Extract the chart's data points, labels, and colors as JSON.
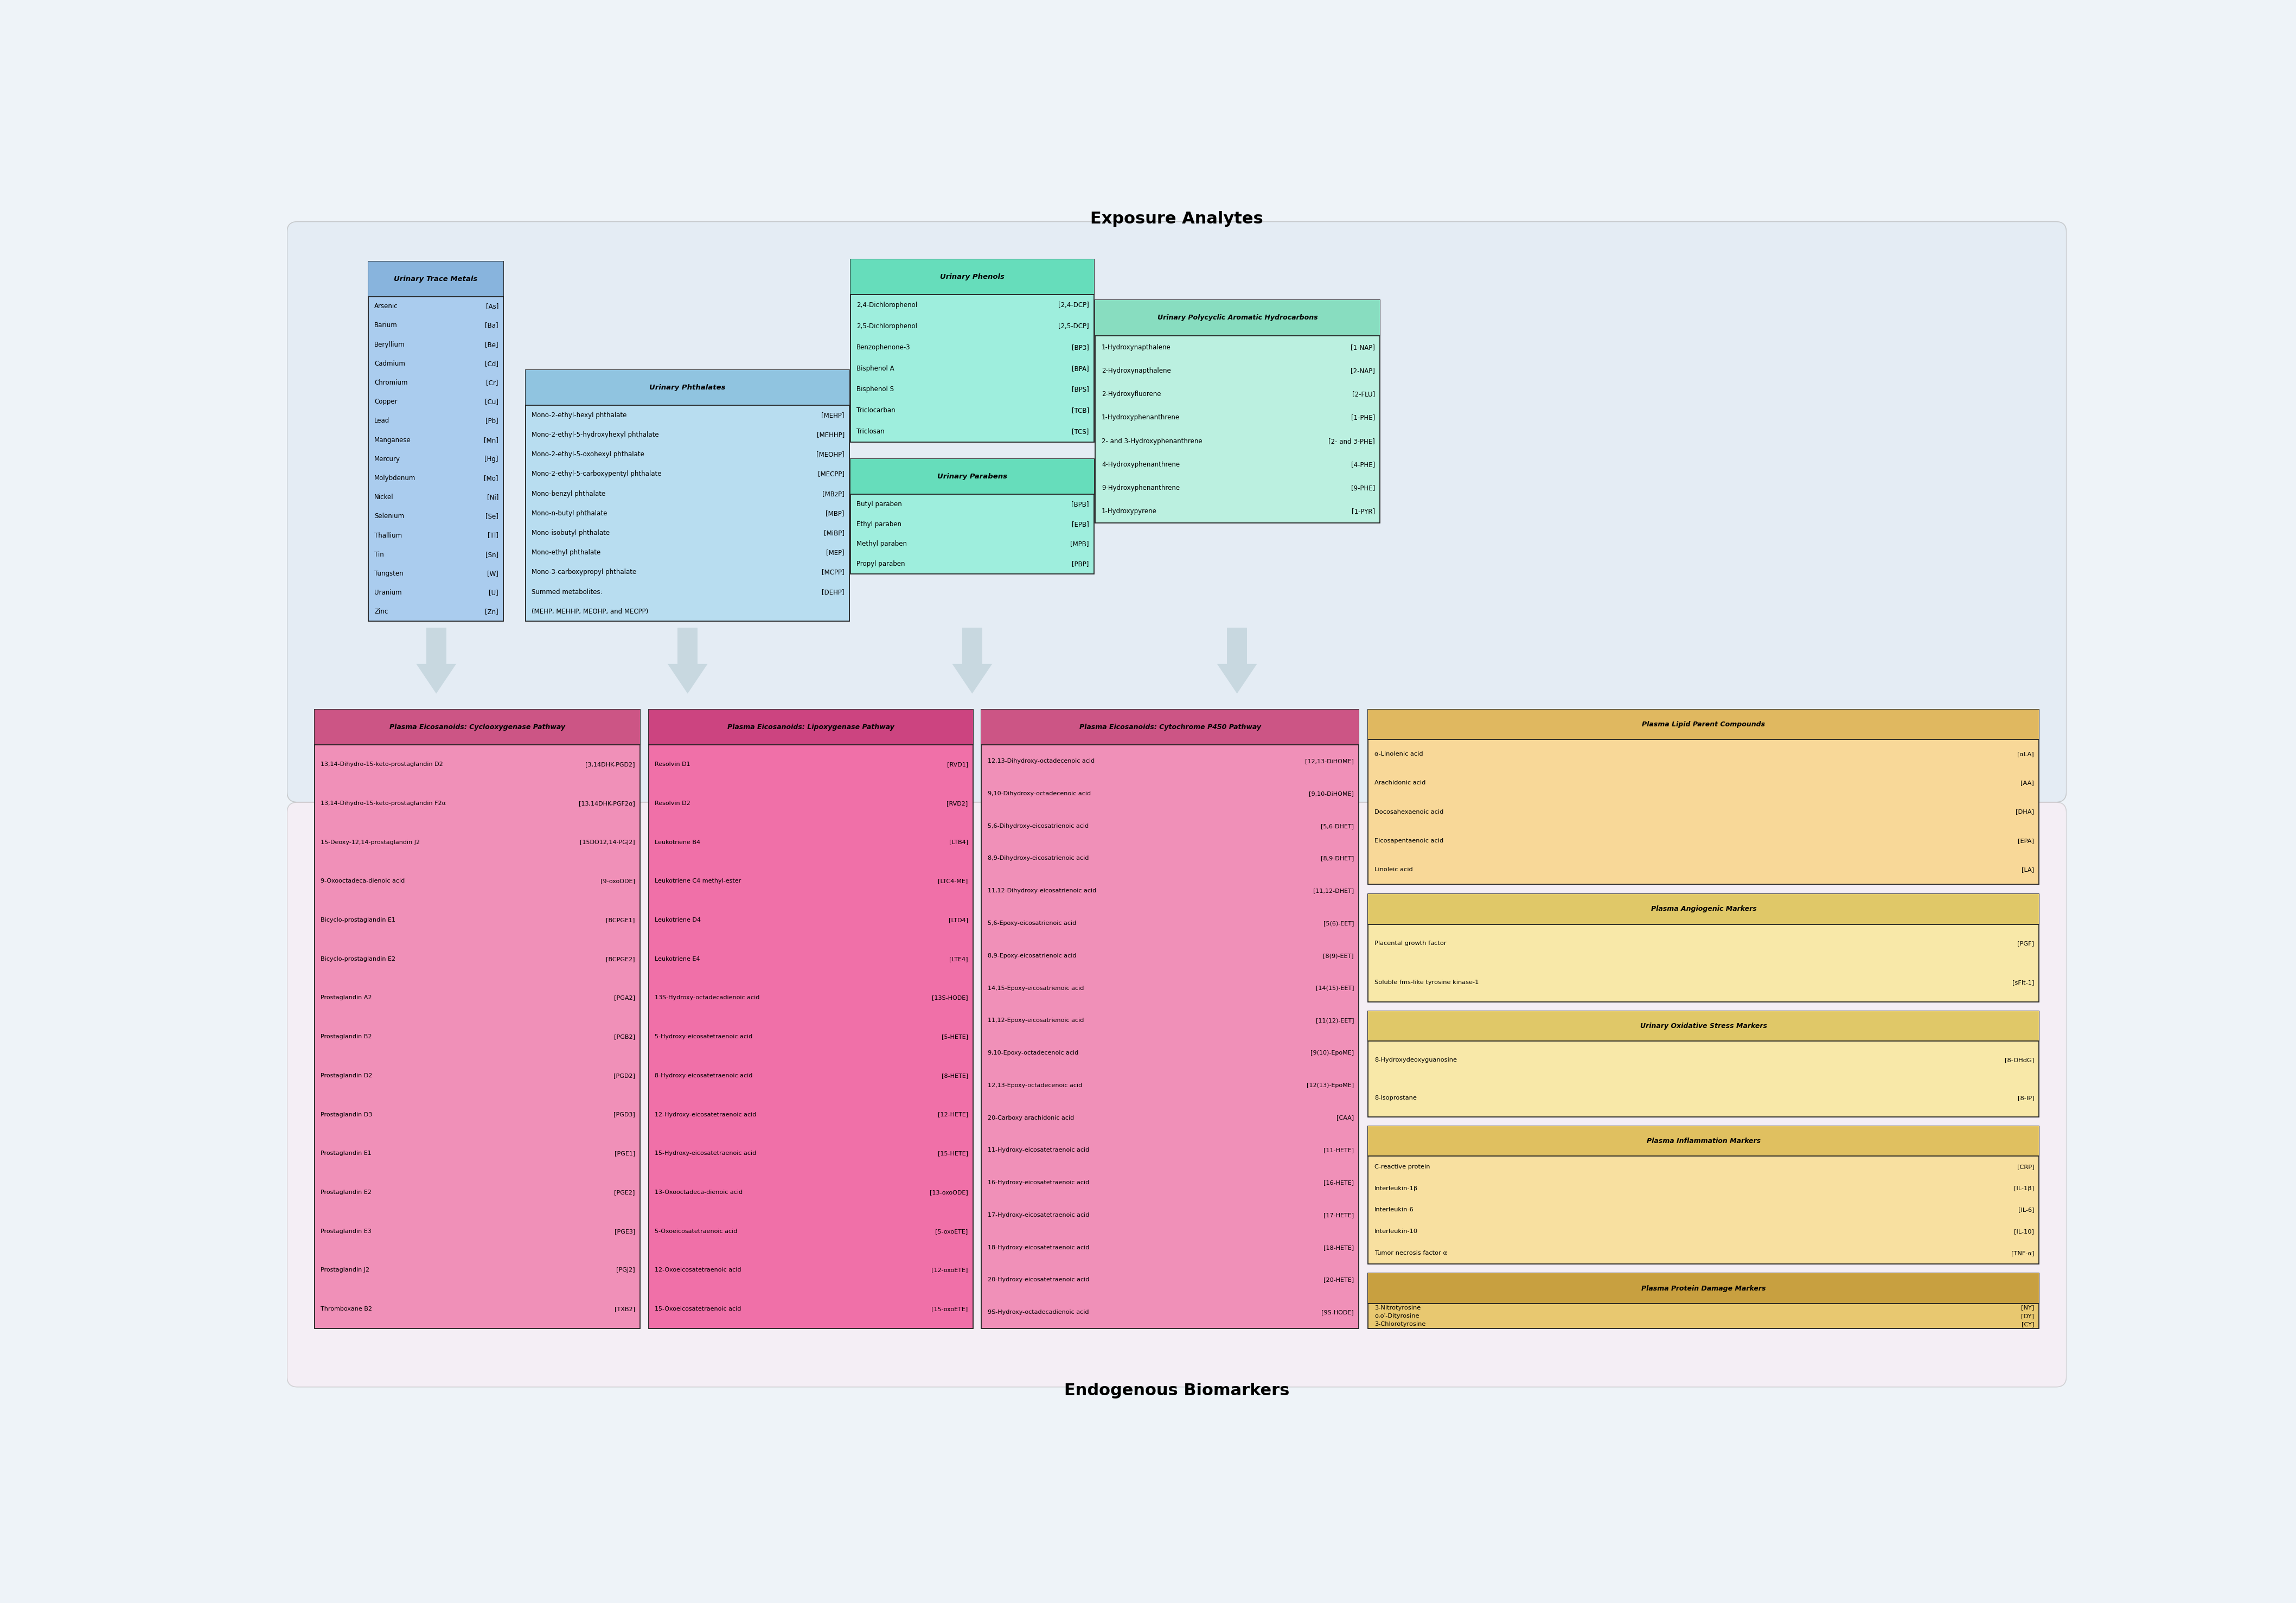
{
  "bg_color": "#eef3f8",
  "exp_bg_color": "#dce8f2",
  "endo_bg_color": "#fce8f2",
  "title_exposure": "Exposure Analytes",
  "title_endogenous": "Endogenous Biomarkers",
  "trace_metals": {
    "title": "Urinary Trace Metals",
    "color": "#aaccee",
    "header_color": "#88b4dd",
    "items": [
      [
        "Arsenic",
        "[As]"
      ],
      [
        "Barium",
        "[Ba]"
      ],
      [
        "Beryllium",
        "[Be]"
      ],
      [
        "Cadmium",
        "[Cd]"
      ],
      [
        "Chromium",
        "[Cr]"
      ],
      [
        "Copper",
        "[Cu]"
      ],
      [
        "Lead",
        "[Pb]"
      ],
      [
        "Manganese",
        "[Mn]"
      ],
      [
        "Mercury",
        "[Hg]"
      ],
      [
        "Molybdenum",
        "[Mo]"
      ],
      [
        "Nickel",
        "[Ni]"
      ],
      [
        "Selenium",
        "[Se]"
      ],
      [
        "Thallium",
        "[Tl]"
      ],
      [
        "Tin",
        "[Sn]"
      ],
      [
        "Tungsten",
        "[W]"
      ],
      [
        "Uranium",
        "[U]"
      ],
      [
        "Zinc",
        "[Zn]"
      ]
    ]
  },
  "phthalates": {
    "title": "Urinary Phthalates",
    "color": "#b8ddf0",
    "header_color": "#90c4e0",
    "items": [
      [
        "Mono-2-ethyl-hexyl phthalate",
        "[MEHP]"
      ],
      [
        "Mono-2-ethyl-5-hydroxyhexyl phthalate",
        "[MEHHP]"
      ],
      [
        "Mono-2-ethyl-5-oxohexyl phthalate",
        "[MEOHP]"
      ],
      [
        "Mono-2-ethyl-5-carboxypentyl phthalate",
        "[MECPP]"
      ],
      [
        "Mono-benzyl phthalate",
        "[MBzP]"
      ],
      [
        "Mono-n-butyl phthalate",
        "[MBP]"
      ],
      [
        "Mono-isobutyl phthalate",
        "[MiBP]"
      ],
      [
        "Mono-ethyl phthalate",
        "[MEP]"
      ],
      [
        "Mono-3-carboxypropyl phthalate",
        "[MCPP]"
      ],
      [
        "Summed metabolites:",
        "[DEHP]"
      ],
      [
        "(MEHP, MEHHP, MEOHP, and MECPP)",
        ""
      ]
    ]
  },
  "phenols": {
    "title": "Urinary Phenols",
    "color": "#9eeedd",
    "header_color": "#66ddbb",
    "items": [
      [
        "2,4-Dichlorophenol",
        "[2,4-DCP]"
      ],
      [
        "2,5-Dichlorophenol",
        "[2,5-DCP]"
      ],
      [
        "Benzophenone-3",
        "[BP3]"
      ],
      [
        "Bisphenol A",
        "[BPA]"
      ],
      [
        "Bisphenol S",
        "[BPS]"
      ],
      [
        "Triclocarban",
        "[TCB]"
      ],
      [
        "Triclosan",
        "[TCS]"
      ]
    ]
  },
  "parabens": {
    "title": "Urinary Parabens",
    "color": "#9eeedd",
    "header_color": "#66ddbb",
    "items": [
      [
        "Butyl paraben",
        "[BPB]"
      ],
      [
        "Ethyl paraben",
        "[EPB]"
      ],
      [
        "Methyl paraben",
        "[MPB]"
      ],
      [
        "Propyl paraben",
        "[PBP]"
      ]
    ]
  },
  "pah": {
    "title": "Urinary Polycyclic Aromatic Hydrocarbons",
    "color": "#bbf0e0",
    "header_color": "#88ddc0",
    "items": [
      [
        "1-Hydroxynapthalene",
        "[1-NAP]"
      ],
      [
        "2-Hydroxynapthalene",
        "[2-NAP]"
      ],
      [
        "2-Hydroxyfluorene",
        "[2-FLU]"
      ],
      [
        "1-Hydroxyphenanthrene",
        "[1-PHE]"
      ],
      [
        "2- and 3-Hydroxyphenanthrene",
        "[2- and 3-PHE]"
      ],
      [
        "4-Hydroxyphenanthrene",
        "[4-PHE]"
      ],
      [
        "9-Hydroxyphenanthrene",
        "[9-PHE]"
      ],
      [
        "1-Hydroxypyrene",
        "[1-PYR]"
      ]
    ]
  },
  "cyclo": {
    "title": "Plasma Eicosanoids: Cyclooxygenase Pathway",
    "color": "#f090b8",
    "header_color": "#cc5585",
    "items": [
      [
        "13,14-Dihydro-15-keto-prostaglandin D2",
        "[3,14DHK-PGD2]"
      ],
      [
        "13,14-Dihydro-15-keto-prostaglandin F2α",
        "[13,14DHK-PGF2α]"
      ],
      [
        "15-Deoxy-12,14-prostaglandin J2",
        "[15DO12,14-PGJ2]"
      ],
      [
        "9-Oxooctadeca-dienoic acid",
        "[9-oxoODE]"
      ],
      [
        "Bicyclo-prostaglandin E1",
        "[BCPGE1]"
      ],
      [
        "Bicyclo-prostaglandin E2",
        "[BCPGE2]"
      ],
      [
        "Prostaglandin A2",
        "[PGA2]"
      ],
      [
        "Prostaglandin B2",
        "[PGB2]"
      ],
      [
        "Prostaglandin D2",
        "[PGD2]"
      ],
      [
        "Prostaglandin D3",
        "[PGD3]"
      ],
      [
        "Prostaglandin E1",
        "[PGE1]"
      ],
      [
        "Prostaglandin E2",
        "[PGE2]"
      ],
      [
        "Prostaglandin E3",
        "[PGE3]"
      ],
      [
        "Prostaglandin J2",
        "[PGJ2]"
      ],
      [
        "Thromboxane B2",
        "[TXB2]"
      ]
    ]
  },
  "lipox": {
    "title": "Plasma Eicosanoids: Lipoxygenase Pathway",
    "color": "#f070a8",
    "header_color": "#cc4480",
    "items": [
      [
        "Resolvin D1",
        "[RVD1]"
      ],
      [
        "Resolvin D2",
        "[RVD2]"
      ],
      [
        "Leukotriene B4",
        "[LTB4]"
      ],
      [
        "Leukotriene C4 methyl-ester",
        "[LTC4-ME]"
      ],
      [
        "Leukotriene D4",
        "[LTD4]"
      ],
      [
        "Leukotriene E4",
        "[LTE4]"
      ],
      [
        "13S-Hydroxy-octadecadienoic acid",
        "[13S-HODE]"
      ],
      [
        "5-Hydroxy-eicosatetraenoic acid",
        "[5-HETE]"
      ],
      [
        "8-Hydroxy-eicosatetraenoic acid",
        "[8-HETE]"
      ],
      [
        "12-Hydroxy-eicosatetraenoic acid",
        "[12-HETE]"
      ],
      [
        "15-Hydroxy-eicosatetraenoic acid",
        "[15-HETE]"
      ],
      [
        "13-Oxooctadeca-dienoic acid",
        "[13-oxoODE]"
      ],
      [
        "5-Oxoeicosatetraenoic acid",
        "[5-oxoETE]"
      ],
      [
        "12-Oxoeicosatetraenoic acid",
        "[12-oxoETE]"
      ],
      [
        "15-Oxoeicosatetraenoic acid",
        "[15-oxoETE]"
      ]
    ]
  },
  "cyto": {
    "title": "Plasma Eicosanoids: Cytochrome P450 Pathway",
    "color": "#f090b8",
    "header_color": "#cc5585",
    "items": [
      [
        "12,13-Dihydroxy-octadecenoic acid",
        "[12,13-DiHOME]"
      ],
      [
        "9,10-Dihydroxy-octadecenoic acid",
        "[9,10-DiHOME]"
      ],
      [
        "5,6-Dihydroxy-eicosatrienoic acid",
        "[5,6-DHET]"
      ],
      [
        "8,9-Dihydroxy-eicosatrienoic acid",
        "[8,9-DHET]"
      ],
      [
        "11,12-Dihydroxy-eicosatrienoic acid",
        "[11,12-DHET]"
      ],
      [
        "5,6-Epoxy-eicosatrienoic acid",
        "[5(6)-EET]"
      ],
      [
        "8,9-Epoxy-eicosatrienoic acid",
        "[8(9)-EET]"
      ],
      [
        "14,15-Epoxy-eicosatrienoic acid",
        "[14(15)-EET]"
      ],
      [
        "11,12-Epoxy-eicosatrienoic acid",
        "[11(12)-EET]"
      ],
      [
        "9,10-Epoxy-octadecenoic acid",
        "[9(10)-EpoME]"
      ],
      [
        "12,13-Epoxy-octadecenoic acid",
        "[12(13)-EpoME]"
      ],
      [
        "20-Carboxy arachidonic acid",
        "[CAA]"
      ],
      [
        "11-Hydroxy-eicosatetraenoic acid",
        "[11-HETE]"
      ],
      [
        "16-Hydroxy-eicosatetraenoic acid",
        "[16-HETE]"
      ],
      [
        "17-Hydroxy-eicosatetraenoic acid",
        "[17-HETE]"
      ],
      [
        "18-Hydroxy-eicosatetraenoic acid",
        "[18-HETE]"
      ],
      [
        "20-Hydroxy-eicosatetraenoic acid",
        "[20-HETE]"
      ],
      [
        "9S-Hydroxy-octadecadienoic acid",
        "[9S-HODE]"
      ]
    ]
  },
  "lipid": {
    "title": "Plasma Lipid Parent Compounds",
    "color": "#f8d898",
    "header_color": "#e0b860",
    "items": [
      [
        "α-Linolenic acid",
        "[αLA]"
      ],
      [
        "Arachidonic acid",
        "[AA]"
      ],
      [
        "Docosahexaenoic acid",
        "[DHA]"
      ],
      [
        "Eicosapentaenoic acid",
        "[EPA]"
      ],
      [
        "Linoleic acid",
        "[LA]"
      ]
    ]
  },
  "angio": {
    "title": "Plasma Angiogenic Markers",
    "color": "#f8e8a8",
    "header_color": "#e0c868",
    "items": [
      [
        "Placental growth factor",
        "[PGF]"
      ],
      [
        "Soluble fms-like tyrosine kinase-1",
        "[sFlt-1]"
      ]
    ]
  },
  "oxid": {
    "title": "Urinary Oxidative Stress Markers",
    "color": "#f8e8a8",
    "header_color": "#e0c868",
    "items": [
      [
        "8-Hydroxydeoxyguanosine",
        "[8-OHdG]"
      ],
      [
        "8-Isoprostane",
        "[8-IP]"
      ]
    ]
  },
  "inflam": {
    "title": "Plasma Inflammation Markers",
    "color": "#f8e0a0",
    "header_color": "#e0c060",
    "items": [
      [
        "C-reactive protein",
        "[CRP]"
      ],
      [
        "Interleukin-1β",
        "[IL-1β]"
      ],
      [
        "Interleukin-6",
        "[IL-6]"
      ],
      [
        "Interleukin-10",
        "[IL-10]"
      ],
      [
        "Tumor necrosis factor α",
        "[TNF-α]"
      ]
    ]
  },
  "protein": {
    "title": "Plasma Protein Damage Markers",
    "color": "#e8c870",
    "header_color": "#c8a040",
    "items": [
      [
        "3-Nitrotyrosine",
        "[NY]"
      ],
      [
        "o,o′-Dityrosine",
        "[DY]"
      ],
      [
        "3-Chlorotyrosine",
        "[CY]"
      ]
    ]
  },
  "arrow_color": "#c8d8e0"
}
